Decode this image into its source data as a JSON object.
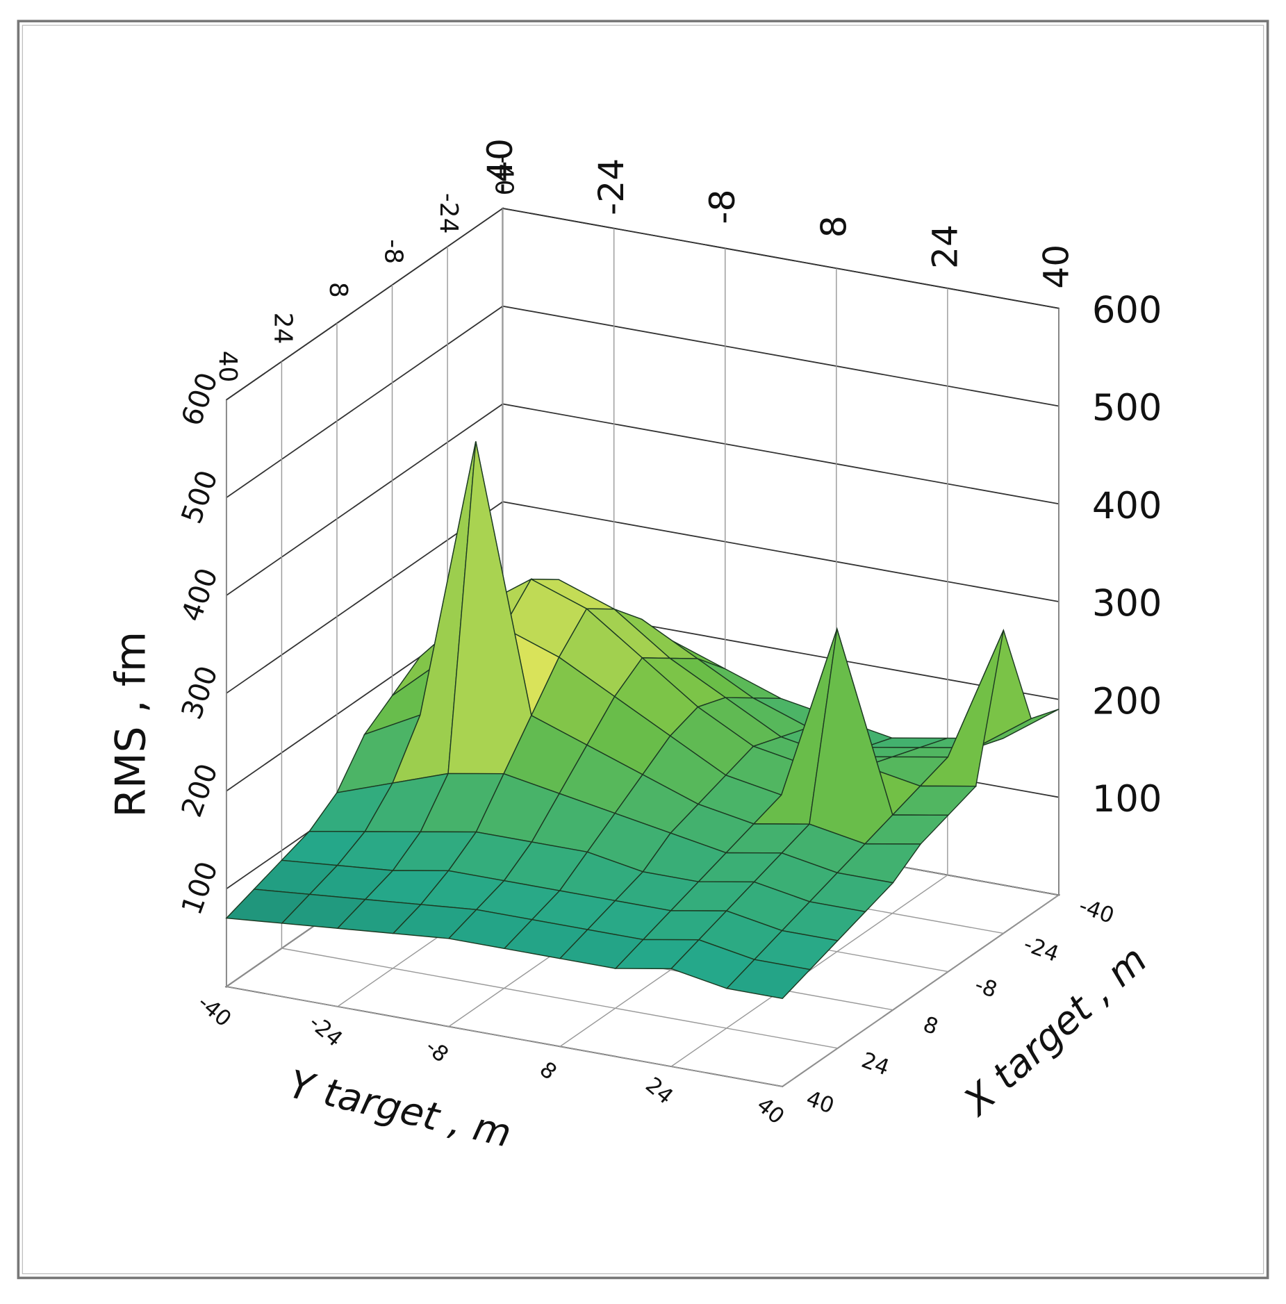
{
  "chart_data": {
    "type": "surface",
    "zlabel": "RMS , fm",
    "ylabel": "Y target , m",
    "xlabel": "X target , m",
    "x": [
      -40,
      -32,
      -24,
      -16,
      -8,
      0,
      8,
      16,
      24,
      32,
      40
    ],
    "y": [
      -40,
      -32,
      -24,
      -16,
      -8,
      0,
      8,
      16,
      24,
      32,
      40
    ],
    "z": [
      [
        150,
        170,
        190,
        200,
        180,
        160,
        120,
        100,
        90,
        80,
        70
      ],
      [
        180,
        210,
        240,
        260,
        230,
        190,
        140,
        110,
        95,
        85,
        75
      ],
      [
        200,
        240,
        280,
        300,
        270,
        480,
        160,
        120,
        100,
        90,
        80
      ],
      [
        190,
        230,
        260,
        280,
        250,
        210,
        170,
        130,
        110,
        95,
        85
      ],
      [
        170,
        200,
        220,
        240,
        220,
        190,
        160,
        130,
        110,
        100,
        90
      ],
      [
        150,
        170,
        190,
        200,
        190,
        170,
        150,
        130,
        110,
        100,
        90
      ],
      [
        140,
        150,
        160,
        170,
        160,
        150,
        140,
        120,
        110,
        100,
        90
      ],
      [
        130,
        140,
        150,
        160,
        150,
        140,
        130,
        120,
        110,
        100,
        90
      ],
      [
        140,
        150,
        160,
        170,
        330,
        150,
        140,
        130,
        120,
        110,
        100
      ],
      [
        150,
        160,
        170,
        160,
        150,
        140,
        130,
        120,
        110,
        100,
        90
      ],
      [
        190,
        200,
        310,
        170,
        160,
        150,
        130,
        120,
        110,
        100,
        90
      ]
    ],
    "xlim": [
      -40,
      40
    ],
    "ylim": [
      -40,
      40
    ],
    "zlim": [
      0,
      600
    ],
    "xticks": [
      -40,
      -24,
      -8,
      8,
      24,
      40
    ],
    "yticks": [
      -40,
      -24,
      -8,
      8,
      24,
      40
    ],
    "zticks": [
      100,
      200,
      300,
      400,
      500,
      600
    ],
    "grid": true,
    "colormap": [
      "#0f5a4a",
      "#25a88a",
      "#6fbf45",
      "#d9e35a"
    ]
  }
}
